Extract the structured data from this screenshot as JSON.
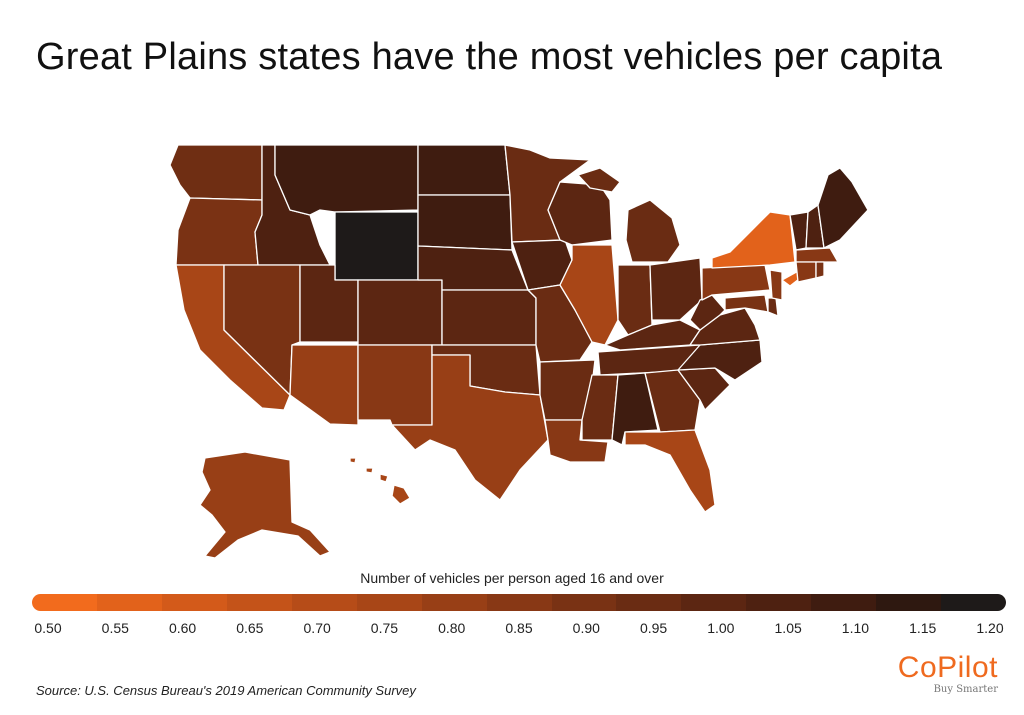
{
  "title": "Great Plains states have the most vehicles per capita",
  "legend": {
    "title": "Number of vehicles per person aged 16 and over",
    "min": 0.5,
    "max": 1.2,
    "ticks": [
      "0.50",
      "0.55",
      "0.60",
      "0.65",
      "0.70",
      "0.75",
      "0.80",
      "0.85",
      "0.90",
      "0.95",
      "1.00",
      "1.05",
      "1.10",
      "1.15",
      "1.20"
    ],
    "colors": [
      "#f26b1d",
      "#e2621b",
      "#d35a1a",
      "#c45319",
      "#b64c18",
      "#a84617",
      "#983f16",
      "#883815",
      "#793214",
      "#6a2c13",
      "#5c2612",
      "#4e2111",
      "#3f1c10",
      "#2e1810",
      "#1e1a19"
    ]
  },
  "source": "Source: U.S. Census Bureau's 2019 American Community Survey",
  "logo": {
    "name": "CoPilot",
    "tagline": "Buy Smarter"
  }
}
